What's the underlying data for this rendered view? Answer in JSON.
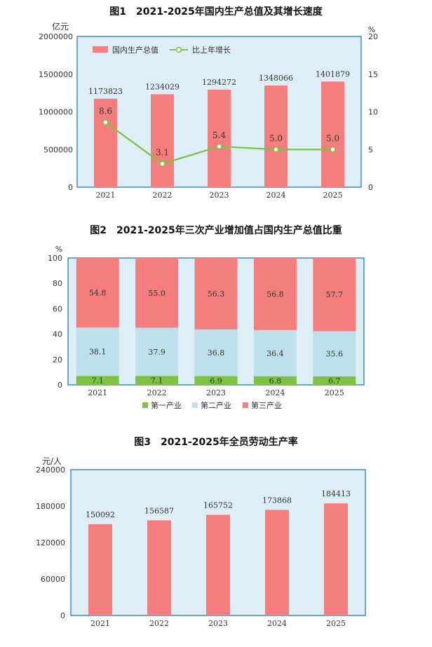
{
  "charts": [
    {
      "title": "图1　2021-2025年国内生产总值及其增长速度",
      "unit_left": "亿元",
      "unit_right": "%"
    },
    {
      "title": "图2　2021-2025年三次产业增加值占国内生产总值比重",
      "unit_left": "%"
    },
    {
      "title": "图3　2021-2025年全员劳动生产率",
      "unit_left": "元/人"
    }
  ],
  "chart_data": [
    {
      "type": "bar",
      "categories": [
        "2021",
        "2022",
        "2023",
        "2024",
        "2025"
      ],
      "series": [
        {
          "name": "国内生产总值",
          "type": "bar",
          "axis": "left",
          "values": [
            1173823,
            1234029,
            1294272,
            1348066,
            1401879
          ],
          "labels": [
            "1173823",
            "1234029",
            "1294272",
            "1348066",
            "1401879"
          ]
        },
        {
          "name": "比上年增长",
          "type": "line",
          "axis": "right",
          "values": [
            8.6,
            3.1,
            5.4,
            5.0,
            5.0
          ],
          "labels": [
            "8.6",
            "3.1",
            "5.4",
            "5.0",
            "5.0"
          ]
        }
      ],
      "ylim": [
        0,
        2000000
      ],
      "yticks": [
        "0",
        "500000",
        "1000000",
        "1500000",
        "2000000"
      ],
      "y2lim": [
        0,
        20
      ],
      "y2ticks": [
        "0",
        "5",
        "10",
        "15",
        "20"
      ],
      "legend_position": "top-left",
      "colors": {
        "bar": "#f47d7d",
        "line": "#7dc242",
        "plot_bg": "#ddeef6",
        "frame": "#2e86c1"
      }
    },
    {
      "type": "bar",
      "stacked": true,
      "categories": [
        "2021",
        "2022",
        "2023",
        "2024",
        "2025"
      ],
      "series": [
        {
          "name": "第一产业",
          "values": [
            7.1,
            7.1,
            6.9,
            6.8,
            6.7
          ],
          "labels": [
            "7.1",
            "7.1",
            "6.9",
            "6.8",
            "6.7"
          ]
        },
        {
          "name": "第二产业",
          "values": [
            38.1,
            37.9,
            36.8,
            36.4,
            35.6
          ],
          "labels": [
            "38.1",
            "37.9",
            "36.8",
            "36.4",
            "35.6"
          ]
        },
        {
          "name": "第三产业",
          "values": [
            54.8,
            55.0,
            56.3,
            56.8,
            57.7
          ],
          "labels": [
            "54.8",
            "55.0",
            "56.3",
            "56.8",
            "57.7"
          ]
        }
      ],
      "ylim": [
        0,
        100
      ],
      "yticks": [
        "0",
        "20",
        "40",
        "60",
        "80",
        "100"
      ],
      "legend_position": "bottom",
      "colors": {
        "primary": "#7dc242",
        "secondary": "#bde0ea",
        "tertiary": "#f47d7d",
        "plot_bg": "#ddeef6",
        "frame": "#2e86c1"
      }
    },
    {
      "type": "bar",
      "categories": [
        "2021",
        "2022",
        "2023",
        "2024",
        "2025"
      ],
      "series": [
        {
          "values": [
            150092,
            156587,
            165752,
            173868,
            184413
          ],
          "labels": [
            "150092",
            "156587",
            "165752",
            "173868",
            "184413"
          ]
        }
      ],
      "ylim": [
        0,
        240000
      ],
      "yticks": [
        "0",
        "60000",
        "120000",
        "180000",
        "240000"
      ],
      "colors": {
        "bar": "#f47d7d",
        "plot_bg": "#ddeef6",
        "frame": "#2e86c1"
      }
    }
  ]
}
